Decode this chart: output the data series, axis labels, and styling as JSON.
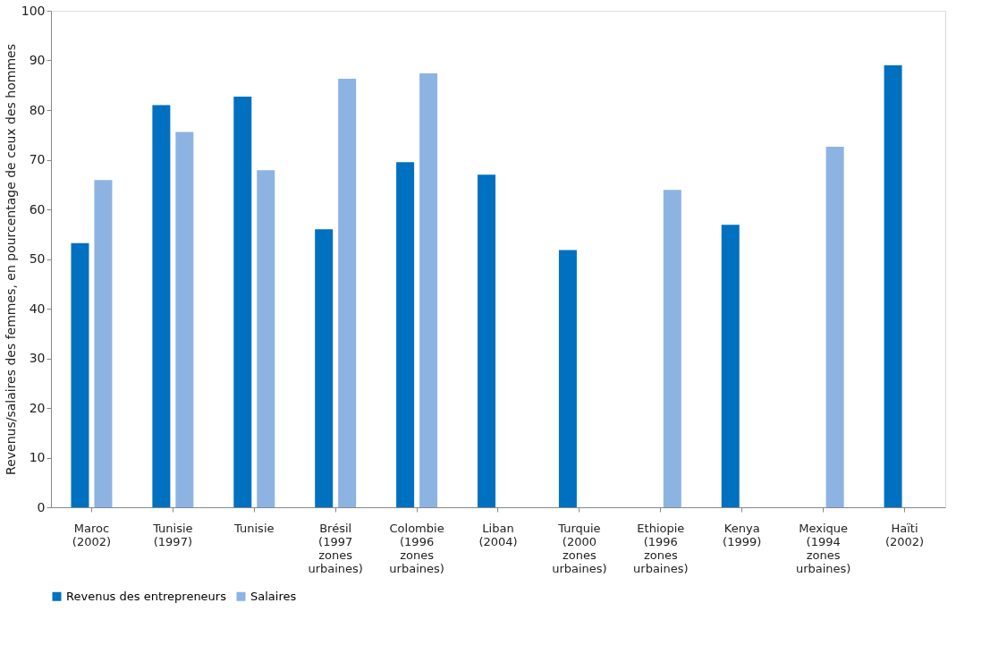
{
  "chart_data": {
    "type": "bar",
    "ylabel": "Revenus/salaires des femmes, en pourcentage de ceux des hommes",
    "categories": [
      "Maroc\n(2002)",
      "Tunisie\n(1997)",
      "Tunisie",
      "Brésil\n(1997\nzones\nurbaines)",
      "Colombie\n(1996\nzones\nurbaines)",
      "Liban\n(2004)",
      "Turquie\n(2000\nzones\nurbaines)",
      "Ethiopie\n(1996\nzones\nurbaines)",
      "Kenya\n(1999)",
      "Mexique\n(1994\nzones\nurbaines)",
      "Haïti\n(2002)"
    ],
    "series": [
      {
        "name": "Revenus des entrepreneurs",
        "color": "#0070c0",
        "values": [
          53.2,
          81.0,
          82.7,
          56.0,
          69.5,
          67.0,
          51.8,
          null,
          56.9,
          null,
          89.0
        ]
      },
      {
        "name": "Salaires",
        "color": "#8db3e2",
        "values": [
          65.9,
          75.6,
          67.9,
          86.3,
          87.4,
          null,
          null,
          63.9,
          null,
          72.6,
          null
        ]
      }
    ],
    "ylim": [
      0,
      100
    ],
    "yticks": [
      0,
      10,
      20,
      30,
      40,
      50,
      60,
      70,
      80,
      90,
      100
    ],
    "grid": false,
    "legend": "bottom"
  }
}
